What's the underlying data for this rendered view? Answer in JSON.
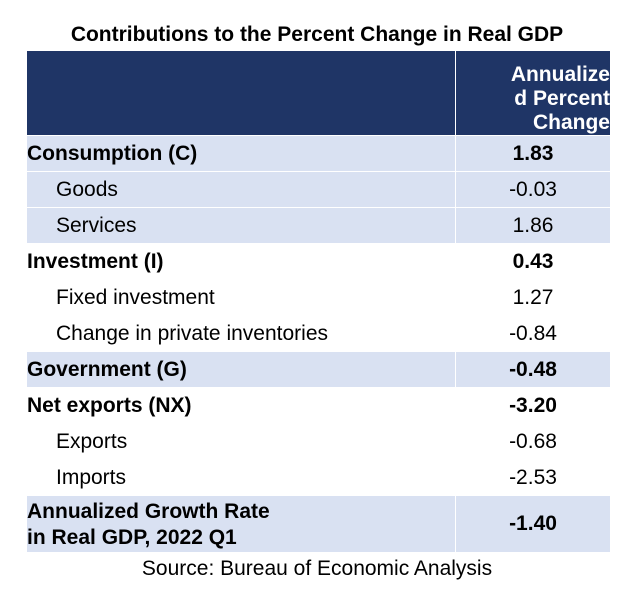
{
  "title": "Contributions to the Percent Change in Real GDP",
  "table": {
    "header": {
      "label_column": "",
      "value_column": "Annualized Percent Change",
      "value_column_lines": [
        "Annualize",
        "d Percent",
        "Change"
      ]
    },
    "rows": [
      {
        "label": "Consumption (C)",
        "value": "1.83"
      },
      {
        "label": "Goods",
        "value": "-0.03"
      },
      {
        "label": "Services",
        "value": "1.86"
      },
      {
        "label": "Investment (I)",
        "value": "0.43"
      },
      {
        "label": "Fixed investment",
        "value": "1.27"
      },
      {
        "label": "Change in private inventories",
        "value": "-0.84"
      },
      {
        "label": "Government (G)",
        "value": "-0.48"
      },
      {
        "label": "Net exports (NX)",
        "value": "-3.20"
      },
      {
        "label": "Exports",
        "value": "-0.68"
      },
      {
        "label": "Imports",
        "value": "-2.53"
      }
    ],
    "total": {
      "label_lines": [
        "Annualized Growth Rate",
        "in Real GDP, 2022 Q1"
      ],
      "value": "-1.40"
    }
  },
  "source": "Source: Bureau of Economic Analysis",
  "colors": {
    "header_bg": "#1f3566",
    "shaded_row_bg": "#d9e1f2"
  }
}
